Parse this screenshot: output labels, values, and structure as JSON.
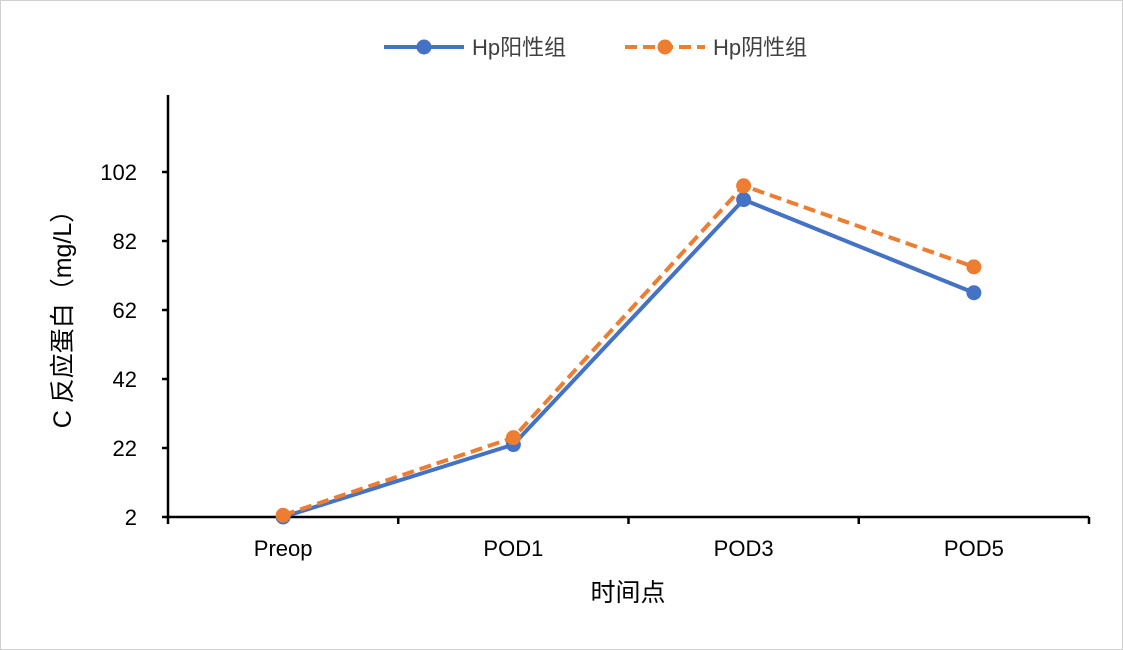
{
  "chart_data": {
    "type": "line",
    "title": "",
    "xlabel": "时间点",
    "ylabel": "C 反应蛋白（mg/L）",
    "categories": [
      "Preop",
      "POD1",
      "POD3",
      "POD5"
    ],
    "y_ticks": [
      2,
      22,
      42,
      62,
      82,
      102
    ],
    "ylim": [
      2,
      122
    ],
    "grid": false,
    "legend_position": "top",
    "series": [
      {
        "name": "Hp阳性组",
        "values": [
          2,
          23,
          94,
          67
        ],
        "color": "#4472C4",
        "line_style": "solid",
        "marker": "circle"
      },
      {
        "name": "Hp阴性组",
        "values": [
          2.5,
          25,
          98,
          74.5
        ],
        "color": "#ED7D31",
        "line_style": "dashed",
        "marker": "circle"
      }
    ]
  }
}
